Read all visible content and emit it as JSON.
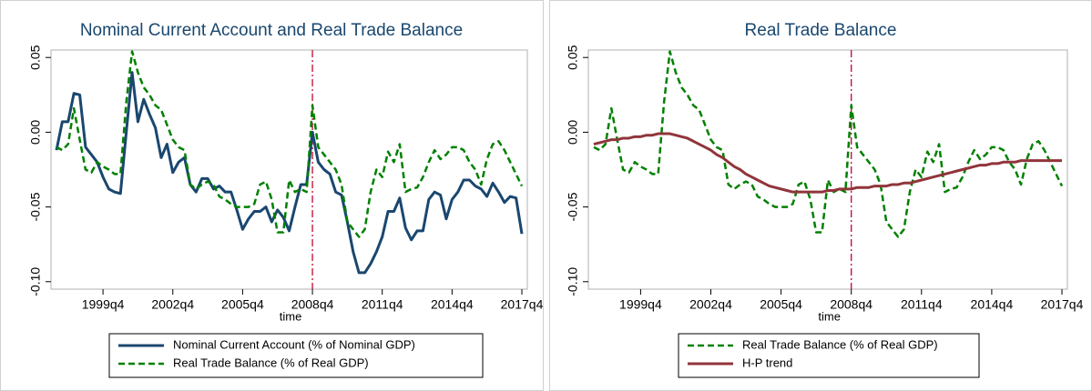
{
  "chart_data": [
    {
      "type": "line",
      "title": "Nominal Current Account and Real Trade Balance",
      "xlabel": "time",
      "x": [
        "1997q4",
        "1998q1",
        "1998q2",
        "1998q3",
        "1998q4",
        "1999q1",
        "1999q2",
        "1999q3",
        "1999q4",
        "2000q1",
        "2000q2",
        "2000q3",
        "2000q4",
        "2001q1",
        "2001q2",
        "2001q3",
        "2001q4",
        "2002q1",
        "2002q2",
        "2002q3",
        "2002q4",
        "2003q1",
        "2003q2",
        "2003q3",
        "2003q4",
        "2004q1",
        "2004q2",
        "2004q3",
        "2004q4",
        "2005q1",
        "2005q2",
        "2005q3",
        "2005q4",
        "2006q1",
        "2006q2",
        "2006q3",
        "2006q4",
        "2007q1",
        "2007q2",
        "2007q3",
        "2007q4",
        "2008q1",
        "2008q2",
        "2008q3",
        "2008q4",
        "2009q1",
        "2009q2",
        "2009q3",
        "2009q4",
        "2010q1",
        "2010q2",
        "2010q3",
        "2010q4",
        "2011q1",
        "2011q2",
        "2011q3",
        "2011q4",
        "2012q1",
        "2012q2",
        "2012q3",
        "2012q4",
        "2013q1",
        "2013q2",
        "2013q3",
        "2013q4",
        "2014q1",
        "2014q2",
        "2014q3",
        "2014q4",
        "2015q1",
        "2015q2",
        "2015q3",
        "2015q4",
        "2016q1",
        "2016q2",
        "2016q3",
        "2016q4",
        "2017q1",
        "2017q2",
        "2017q3",
        "2017q4"
      ],
      "xticks": [
        "1999q4",
        "2002q4",
        "2005q4",
        "2008q4",
        "2011q4",
        "2014q4",
        "2017q4"
      ],
      "xline": "2008q4",
      "xline_color": "#c10534",
      "ylim": [
        -0.105,
        0.055
      ],
      "yticks": [
        {
          "value": -0.1,
          "label": "-0.10"
        },
        -0.05,
        {
          "value": 0,
          "label": "0.00"
        },
        0.05
      ],
      "grid": false,
      "legend": "bottom",
      "series": [
        {
          "name": "Nominal Current Account (% of Nominal GDP)",
          "color": "#1a476f",
          "dash": false,
          "values": [
            -0.012,
            0.007,
            0.007,
            0.026,
            0.025,
            -0.01,
            -0.015,
            -0.02,
            -0.03,
            -0.038,
            -0.04,
            -0.041,
            0.0,
            0.04,
            0.007,
            0.022,
            0.012,
            0.003,
            -0.017,
            -0.008,
            -0.027,
            -0.02,
            -0.017,
            -0.035,
            -0.04,
            -0.031,
            -0.031,
            -0.038,
            -0.036,
            -0.04,
            -0.04,
            -0.052,
            -0.065,
            -0.058,
            -0.053,
            -0.053,
            -0.05,
            -0.06,
            -0.052,
            -0.057,
            -0.066,
            -0.05,
            -0.035,
            -0.035,
            0.0,
            -0.02,
            -0.025,
            -0.028,
            -0.04,
            -0.042,
            -0.06,
            -0.08,
            -0.094,
            -0.094,
            -0.088,
            -0.08,
            -0.07,
            -0.053,
            -0.053,
            -0.044,
            -0.064,
            -0.072,
            -0.066,
            -0.066,
            -0.045,
            -0.04,
            -0.042,
            -0.058,
            -0.045,
            -0.04,
            -0.032,
            -0.032,
            -0.036,
            -0.038,
            -0.043,
            -0.034,
            -0.04,
            -0.047,
            -0.043,
            -0.044,
            -0.068
          ]
        },
        {
          "name": "Real Trade Balance (% of Real GDP)",
          "color": "#008000",
          "dash": true,
          "values": [
            -0.01,
            -0.012,
            -0.008,
            0.016,
            -0.005,
            -0.025,
            -0.027,
            -0.02,
            -0.023,
            -0.025,
            -0.028,
            -0.028,
            0.02,
            0.054,
            0.04,
            0.03,
            0.025,
            0.018,
            0.015,
            0.005,
            -0.005,
            -0.01,
            -0.012,
            -0.035,
            -0.038,
            -0.035,
            -0.033,
            -0.035,
            -0.043,
            -0.045,
            -0.048,
            -0.05,
            -0.05,
            -0.05,
            -0.048,
            -0.035,
            -0.033,
            -0.045,
            -0.067,
            -0.067,
            -0.032,
            -0.04,
            -0.038,
            -0.04,
            0.018,
            -0.01,
            -0.015,
            -0.02,
            -0.025,
            -0.035,
            -0.06,
            -0.065,
            -0.07,
            -0.065,
            -0.04,
            -0.025,
            -0.03,
            -0.013,
            -0.02,
            -0.008,
            -0.04,
            -0.038,
            -0.037,
            -0.03,
            -0.02,
            -0.012,
            -0.018,
            -0.015,
            -0.01,
            -0.01,
            -0.012,
            -0.02,
            -0.025,
            -0.035,
            -0.018,
            -0.008,
            -0.006,
            -0.012,
            -0.02,
            -0.028,
            -0.036
          ]
        }
      ]
    },
    {
      "type": "line",
      "title": "Real Trade Balance",
      "xlabel": "time",
      "x": [
        "1997q4",
        "1998q1",
        "1998q2",
        "1998q3",
        "1998q4",
        "1999q1",
        "1999q2",
        "1999q3",
        "1999q4",
        "2000q1",
        "2000q2",
        "2000q3",
        "2000q4",
        "2001q1",
        "2001q2",
        "2001q3",
        "2001q4",
        "2002q1",
        "2002q2",
        "2002q3",
        "2002q4",
        "2003q1",
        "2003q2",
        "2003q3",
        "2003q4",
        "2004q1",
        "2004q2",
        "2004q3",
        "2004q4",
        "2005q1",
        "2005q2",
        "2005q3",
        "2005q4",
        "2006q1",
        "2006q2",
        "2006q3",
        "2006q4",
        "2007q1",
        "2007q2",
        "2007q3",
        "2007q4",
        "2008q1",
        "2008q2",
        "2008q3",
        "2008q4",
        "2009q1",
        "2009q2",
        "2009q3",
        "2009q4",
        "2010q1",
        "2010q2",
        "2010q3",
        "2010q4",
        "2011q1",
        "2011q2",
        "2011q3",
        "2011q4",
        "2012q1",
        "2012q2",
        "2012q3",
        "2012q4",
        "2013q1",
        "2013q2",
        "2013q3",
        "2013q4",
        "2014q1",
        "2014q2",
        "2014q3",
        "2014q4",
        "2015q1",
        "2015q2",
        "2015q3",
        "2015q4",
        "2016q1",
        "2016q2",
        "2016q3",
        "2016q4",
        "2017q1",
        "2017q2",
        "2017q3",
        "2017q4"
      ],
      "xticks": [
        "1999q4",
        "2002q4",
        "2005q4",
        "2008q4",
        "2011q4",
        "2014q4",
        "2017q4"
      ],
      "xline": "2008q4",
      "xline_color": "#c10534",
      "ylim": [
        -0.105,
        0.055
      ],
      "yticks": [
        {
          "value": -0.1,
          "label": "-0.10"
        },
        -0.05,
        {
          "value": 0,
          "label": "0.00"
        },
        0.05
      ],
      "grid": false,
      "legend": "bottom",
      "series": [
        {
          "name": "Real Trade Balance (% of Real GDP)",
          "color": "#008000",
          "dash": true,
          "values": [
            -0.01,
            -0.012,
            -0.008,
            0.016,
            -0.005,
            -0.025,
            -0.027,
            -0.02,
            -0.023,
            -0.025,
            -0.028,
            -0.028,
            0.02,
            0.054,
            0.04,
            0.03,
            0.025,
            0.018,
            0.015,
            0.005,
            -0.005,
            -0.01,
            -0.012,
            -0.035,
            -0.038,
            -0.035,
            -0.033,
            -0.035,
            -0.043,
            -0.045,
            -0.048,
            -0.05,
            -0.05,
            -0.05,
            -0.048,
            -0.035,
            -0.033,
            -0.045,
            -0.067,
            -0.067,
            -0.032,
            -0.04,
            -0.038,
            -0.04,
            0.018,
            -0.01,
            -0.015,
            -0.02,
            -0.025,
            -0.035,
            -0.06,
            -0.065,
            -0.07,
            -0.065,
            -0.04,
            -0.025,
            -0.03,
            -0.013,
            -0.02,
            -0.008,
            -0.04,
            -0.038,
            -0.037,
            -0.03,
            -0.02,
            -0.012,
            -0.018,
            -0.015,
            -0.01,
            -0.01,
            -0.012,
            -0.02,
            -0.025,
            -0.035,
            -0.018,
            -0.008,
            -0.006,
            -0.012,
            -0.02,
            -0.028,
            -0.036
          ]
        },
        {
          "name": "H-P trend",
          "color": "#90353b",
          "dash": false,
          "values": [
            -0.008,
            -0.007,
            -0.006,
            -0.005,
            -0.005,
            -0.004,
            -0.004,
            -0.003,
            -0.003,
            -0.002,
            -0.002,
            -0.001,
            -0.001,
            -0.001,
            -0.002,
            -0.003,
            -0.004,
            -0.006,
            -0.008,
            -0.01,
            -0.012,
            -0.015,
            -0.017,
            -0.02,
            -0.023,
            -0.025,
            -0.028,
            -0.03,
            -0.032,
            -0.034,
            -0.036,
            -0.037,
            -0.038,
            -0.039,
            -0.04,
            -0.04,
            -0.04,
            -0.04,
            -0.04,
            -0.04,
            -0.039,
            -0.039,
            -0.038,
            -0.038,
            -0.038,
            -0.037,
            -0.037,
            -0.037,
            -0.036,
            -0.036,
            -0.036,
            -0.035,
            -0.035,
            -0.034,
            -0.034,
            -0.033,
            -0.032,
            -0.031,
            -0.03,
            -0.029,
            -0.028,
            -0.027,
            -0.026,
            -0.025,
            -0.024,
            -0.023,
            -0.022,
            -0.022,
            -0.021,
            -0.021,
            -0.02,
            -0.02,
            -0.02,
            -0.019,
            -0.019,
            -0.019,
            -0.019,
            -0.019,
            -0.019,
            -0.019,
            -0.019
          ]
        }
      ]
    }
  ]
}
